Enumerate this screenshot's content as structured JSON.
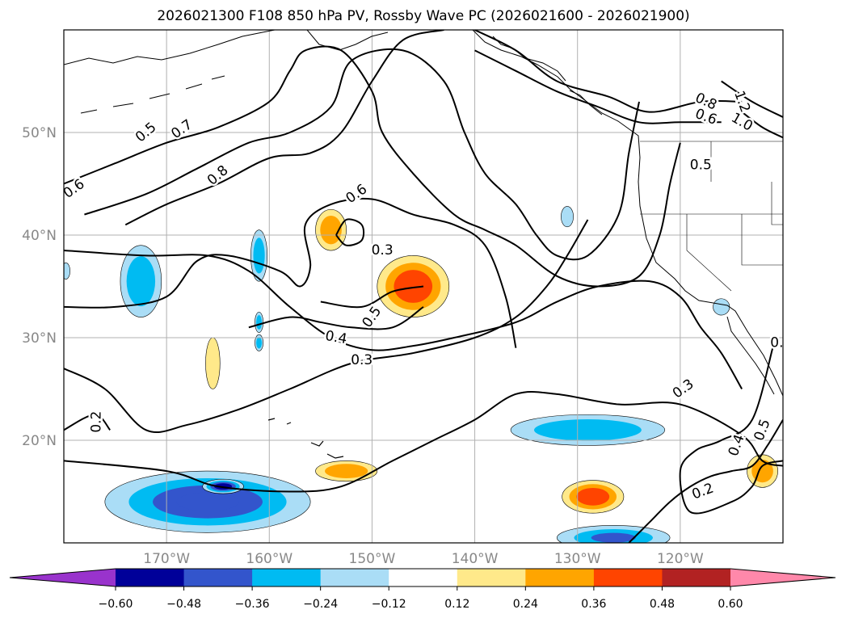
{
  "chart_data": {
    "type": "contour-map",
    "title": "2026021300 F108 850 hPa PV, Rossby Wave PC (2026021600 - 2026021900)",
    "lon_range": [
      -180,
      -110
    ],
    "lat_range": [
      10,
      60
    ],
    "x_ticks": [
      {
        "value": -170,
        "label": "170°W"
      },
      {
        "value": -160,
        "label": "160°W"
      },
      {
        "value": -150,
        "label": "150°W"
      },
      {
        "value": -140,
        "label": "140°W"
      },
      {
        "value": -130,
        "label": "130°W"
      },
      {
        "value": -120,
        "label": "120°W"
      }
    ],
    "y_ticks": [
      {
        "value": 20,
        "label": "20°N"
      },
      {
        "value": 30,
        "label": "30°N"
      },
      {
        "value": 40,
        "label": "40°N"
      },
      {
        "value": 50,
        "label": "50°N"
      }
    ],
    "grid": true,
    "colorbar": {
      "extend": "both",
      "levels": [
        -0.6,
        -0.48,
        -0.36,
        -0.24,
        -0.12,
        0.12,
        0.24,
        0.36,
        0.48,
        0.6
      ],
      "tick_labels": [
        "−0.60",
        "−0.48",
        "−0.36",
        "−0.24",
        "−0.12",
        "0.12",
        "0.24",
        "0.36",
        "0.48",
        "0.60"
      ],
      "colors": [
        "#9933cc",
        "#000099",
        "#3355cc",
        "#00bbf2",
        "#aaddf6",
        "#ffffff",
        "#ffe98a",
        "#ffa500",
        "#ff4400",
        "#b22222",
        "#ff88aa"
      ]
    },
    "contour_labels": [
      {
        "text": "0.5",
        "lon": -172.0,
        "lat": 50.0,
        "rot": -40
      },
      {
        "text": "0.7",
        "lon": -168.5,
        "lat": 50.3,
        "rot": -35
      },
      {
        "text": "0.6",
        "lon": -179.0,
        "lat": 44.5,
        "rot": -35
      },
      {
        "text": "0.8",
        "lon": -165.0,
        "lat": 45.8,
        "rot": -40
      },
      {
        "text": "0.6",
        "lon": -151.5,
        "lat": 44.0,
        "rot": -35
      },
      {
        "text": "0.3",
        "lon": -149.0,
        "lat": 38.5,
        "rot": 0
      },
      {
        "text": "0.5",
        "lon": -150.0,
        "lat": 32.0,
        "rot": -55
      },
      {
        "text": "0.4",
        "lon": -153.5,
        "lat": 30.0,
        "rot": 10
      },
      {
        "text": "0.3",
        "lon": -151.0,
        "lat": 27.8,
        "rot": 0
      },
      {
        "text": "0.2",
        "lon": -176.8,
        "lat": 21.8,
        "rot": -90
      },
      {
        "text": "0.8",
        "lon": -117.5,
        "lat": 53.0,
        "rot": 25
      },
      {
        "text": "0.6",
        "lon": -117.5,
        "lat": 51.5,
        "rot": 20
      },
      {
        "text": "1.2",
        "lon": -114.0,
        "lat": 53.0,
        "rot": 70
      },
      {
        "text": "1.0",
        "lon": -114.0,
        "lat": 51.0,
        "rot": 30
      },
      {
        "text": "0.5",
        "lon": -118.0,
        "lat": 46.8,
        "rot": 0
      },
      {
        "text": "0.3",
        "lon": -119.7,
        "lat": 25.0,
        "rot": -35
      },
      {
        "text": "0.4",
        "lon": -114.5,
        "lat": 19.5,
        "rot": -70
      },
      {
        "text": "0.5",
        "lon": -112.0,
        "lat": 21.0,
        "rot": -70
      },
      {
        "text": "0.2",
        "lon": -117.8,
        "lat": 15.0,
        "rot": -20
      },
      {
        "text": "0.",
        "lon": -110.6,
        "lat": 29.5,
        "rot": 0
      }
    ],
    "contour_lines": [
      {
        "level": 0.2,
        "points": [
          [
            -180,
            18
          ],
          [
            -170,
            17
          ],
          [
            -165,
            15.5
          ],
          [
            -158,
            15
          ],
          [
            -153,
            15.5
          ],
          [
            -148,
            18
          ],
          [
            -144,
            20
          ],
          [
            -140,
            22
          ],
          [
            -136,
            24.5
          ],
          [
            -132,
            24.5
          ],
          [
            -126,
            23.5
          ],
          [
            -120,
            23.5
          ],
          [
            -114,
            20.5
          ],
          [
            -112,
            18
          ],
          [
            -110,
            17.5
          ]
        ]
      },
      {
        "level": 0.2,
        "points": [
          [
            -180,
            27
          ],
          [
            -176,
            25
          ],
          [
            -172,
            21
          ],
          [
            -168,
            21.5
          ],
          [
            -163,
            23
          ],
          [
            -158,
            25
          ],
          [
            -152,
            27.5
          ],
          [
            -146,
            28.5
          ],
          [
            -140,
            30
          ],
          [
            -136,
            32
          ],
          [
            -133,
            35
          ],
          [
            -131,
            38
          ],
          [
            -129,
            41.5
          ]
        ]
      },
      {
        "level": 0.2,
        "points": [
          [
            -180,
            21
          ],
          [
            -177,
            22.5
          ],
          [
            -175.5,
            21
          ]
        ]
      },
      {
        "level": 0.3,
        "points": [
          [
            -180,
            38.5
          ],
          [
            -172,
            38
          ],
          [
            -166,
            38
          ],
          [
            -162,
            36.5
          ],
          [
            -158,
            33
          ],
          [
            -154,
            30
          ],
          [
            -150,
            28.8
          ],
          [
            -146,
            29.2
          ],
          [
            -142,
            30
          ],
          [
            -136,
            31.5
          ],
          [
            -132,
            33.5
          ],
          [
            -128,
            35
          ],
          [
            -123,
            35.5
          ],
          [
            -120,
            34
          ],
          [
            -118,
            31
          ],
          [
            -116,
            28.5
          ],
          [
            -114,
            25
          ]
        ]
      },
      {
        "level": 0.3,
        "points": [
          [
            -153.5,
            40
          ],
          [
            -152.5,
            39
          ],
          [
            -151,
            39.5
          ],
          [
            -151,
            41
          ],
          [
            -152.5,
            41.5
          ],
          [
            -153.5,
            40
          ]
        ]
      },
      {
        "level": 0.4,
        "points": [
          [
            -162,
            31
          ],
          [
            -158,
            32
          ],
          [
            -155,
            31.5
          ],
          [
            -152,
            31
          ],
          [
            -148,
            31
          ],
          [
            -145,
            33
          ]
        ]
      },
      {
        "level": 0.5,
        "points": [
          [
            -180,
            33
          ],
          [
            -175,
            33
          ],
          [
            -170,
            34
          ],
          [
            -167,
            37.5
          ],
          [
            -164,
            38
          ],
          [
            -159,
            36.5
          ],
          [
            -157,
            35
          ],
          [
            -156,
            37
          ],
          [
            -156.5,
            41
          ],
          [
            -154,
            43
          ],
          [
            -150,
            43.5
          ],
          [
            -146,
            42
          ],
          [
            -142,
            41
          ],
          [
            -139,
            39
          ],
          [
            -137,
            34
          ],
          [
            -136,
            29
          ]
        ]
      },
      {
        "level": 0.5,
        "points": [
          [
            -155,
            33.5
          ],
          [
            -151,
            33
          ],
          [
            -148,
            34.5
          ],
          [
            -145,
            35
          ]
        ]
      },
      {
        "level": 0.6,
        "points": [
          [
            -180,
            45
          ],
          [
            -175,
            47
          ],
          [
            -170,
            49
          ],
          [
            -165,
            50.5
          ],
          [
            -160,
            53
          ],
          [
            -158,
            56
          ],
          [
            -156.5,
            58
          ],
          [
            -153,
            58
          ],
          [
            -150,
            54
          ],
          [
            -149,
            50
          ],
          [
            -146,
            46
          ],
          [
            -142,
            42
          ],
          [
            -139,
            40.5
          ],
          [
            -136,
            39
          ],
          [
            -132,
            36
          ],
          [
            -128,
            35
          ],
          [
            -124,
            36
          ],
          [
            -122,
            40
          ],
          [
            -121,
            45
          ],
          [
            -120,
            49
          ]
        ]
      },
      {
        "level": 0.7,
        "points": [
          [
            -178,
            42
          ],
          [
            -172,
            44
          ],
          [
            -167,
            46.5
          ],
          [
            -162,
            49
          ],
          [
            -158,
            50
          ],
          [
            -154,
            52.5
          ],
          [
            -152,
            57
          ],
          [
            -147,
            58
          ],
          [
            -143,
            55
          ],
          [
            -141,
            50
          ],
          [
            -139,
            46
          ],
          [
            -136,
            43
          ],
          [
            -134,
            40
          ],
          [
            -132,
            38
          ],
          [
            -129,
            38
          ],
          [
            -126,
            42
          ],
          [
            -125,
            48
          ],
          [
            -124,
            53
          ]
        ]
      },
      {
        "level": 0.8,
        "points": [
          [
            -174,
            41
          ],
          [
            -170,
            43
          ],
          [
            -165,
            45
          ],
          [
            -160,
            47.5
          ],
          [
            -156,
            48
          ],
          [
            -153,
            50
          ],
          [
            -150,
            55
          ],
          [
            -147,
            59
          ],
          [
            -143,
            60
          ]
        ]
      },
      {
        "level": 0.8,
        "points": [
          [
            -140,
            60
          ],
          [
            -136,
            58
          ],
          [
            -132,
            55
          ],
          [
            -127,
            53.5
          ],
          [
            -123,
            52
          ],
          [
            -118,
            53
          ],
          [
            -114,
            53
          ]
        ]
      },
      {
        "level": 0.6,
        "points": [
          [
            -140,
            58
          ],
          [
            -136,
            56
          ],
          [
            -132,
            54
          ],
          [
            -128,
            52.5
          ],
          [
            -124,
            51
          ],
          [
            -120,
            51
          ],
          [
            -116,
            51
          ]
        ]
      },
      {
        "level": 1.0,
        "points": [
          [
            -114,
            52
          ],
          [
            -112,
            50.5
          ],
          [
            -110,
            49.5
          ]
        ]
      },
      {
        "level": 1.2,
        "points": [
          [
            -116,
            55
          ],
          [
            -113,
            53
          ],
          [
            -110,
            51.5
          ]
        ]
      },
      {
        "level": 0.4,
        "points": [
          [
            -111,
            29
          ],
          [
            -113,
            22
          ],
          [
            -116,
            20
          ],
          [
            -118.5,
            19
          ],
          [
            -120,
            17
          ],
          [
            -119,
            13
          ],
          [
            -115,
            14
          ],
          [
            -113,
            15.5
          ],
          [
            -112,
            17.5
          ],
          [
            -110,
            18
          ]
        ]
      },
      {
        "level": 0.5,
        "points": [
          [
            -110,
            22
          ],
          [
            -111.5,
            19.5
          ],
          [
            -113,
            17.5
          ],
          [
            -115,
            17
          ],
          [
            -117,
            16.5
          ],
          [
            -119,
            15.5
          ],
          [
            -121,
            14
          ],
          [
            -123,
            12
          ],
          [
            -125,
            10
          ]
        ]
      }
    ],
    "pv_anomalies": [
      {
        "lon": -146.0,
        "lat": 35.0,
        "value": 0.48,
        "rx": 3.5,
        "ry": 3.0
      },
      {
        "lon": -154.0,
        "lat": 40.5,
        "value": 0.3,
        "rx": 1.5,
        "ry": 2.0
      },
      {
        "lon": -152.5,
        "lat": 17.0,
        "value": 0.3,
        "rx": 3.0,
        "ry": 1.0
      },
      {
        "lon": -165.5,
        "lat": 27.5,
        "value": 0.2,
        "rx": 0.7,
        "ry": 2.5
      },
      {
        "lon": -112.0,
        "lat": 17.0,
        "value": 0.36,
        "rx": 1.5,
        "ry": 1.6
      },
      {
        "lon": -128.5,
        "lat": 14.5,
        "value": 0.4,
        "rx": 3.0,
        "ry": 1.6
      },
      {
        "lon": -166.0,
        "lat": 14.0,
        "value": -0.42,
        "rx": 10.0,
        "ry": 3.0
      },
      {
        "lon": -164.5,
        "lat": 15.5,
        "value": -0.55,
        "rx": 2.0,
        "ry": 0.7
      },
      {
        "lon": -129.0,
        "lat": 21.0,
        "value": -0.3,
        "rx": 7.5,
        "ry": 1.5
      },
      {
        "lon": -126.5,
        "lat": 10.5,
        "value": -0.36,
        "rx": 5.5,
        "ry": 1.2
      },
      {
        "lon": -172.5,
        "lat": 35.5,
        "value": -0.28,
        "rx": 2.0,
        "ry": 3.5
      },
      {
        "lon": -161.0,
        "lat": 38.0,
        "value": -0.28,
        "rx": 0.8,
        "ry": 2.5
      },
      {
        "lon": -161.0,
        "lat": 31.5,
        "value": -0.25,
        "rx": 0.4,
        "ry": 1.0
      },
      {
        "lon": -161.0,
        "lat": 29.5,
        "value": -0.25,
        "rx": 0.4,
        "ry": 0.8
      },
      {
        "lon": -131.0,
        "lat": 41.8,
        "value": -0.2,
        "rx": 0.6,
        "ry": 1.0
      },
      {
        "lon": -116.0,
        "lat": 33.0,
        "value": -0.2,
        "rx": 0.8,
        "ry": 0.8
      },
      {
        "lon": -179.8,
        "lat": 36.5,
        "value": -0.2,
        "rx": 0.4,
        "ry": 0.8
      }
    ]
  }
}
